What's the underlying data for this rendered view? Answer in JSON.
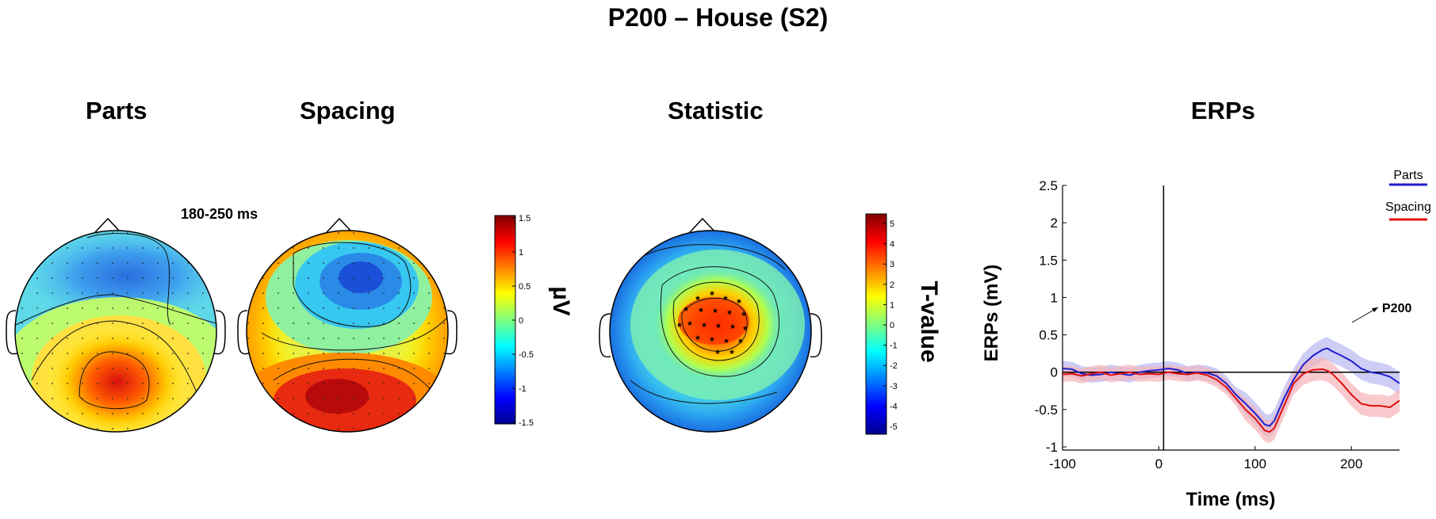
{
  "figure": {
    "title": "P200 – House (S2)",
    "time_window": "180-250 ms"
  },
  "panels": {
    "parts_title": "Parts",
    "spacing_title": "Spacing",
    "statistic_title": "Statistic",
    "erps_title": "ERPs"
  },
  "colorbars": {
    "uv": {
      "label": "µV",
      "ticks": [
        "1.5",
        "1",
        "0.5",
        "0",
        "-0.5",
        "-1",
        "-1.5"
      ]
    },
    "tvalue": {
      "label": "T-value",
      "ticks": [
        "5",
        "4",
        "3",
        "2",
        "1",
        "0",
        "-1",
        "-2",
        "-3",
        "-4",
        "-5"
      ]
    }
  },
  "colors": {
    "parts": "#1f1fcc",
    "spacing": "#e01010",
    "parts_band": "#b8b8f2",
    "spacing_band": "#f6b3b8"
  },
  "chart_data": {
    "type": "line",
    "title": "ERPs",
    "xlabel": "Time (ms)",
    "ylabel": "ERPs (mV)",
    "xlim": [
      -100,
      250
    ],
    "ylim": [
      -1,
      2.5
    ],
    "xticks": [
      -100,
      0,
      100,
      200
    ],
    "yticks": [
      2.5,
      2,
      1.5,
      1,
      0.5,
      0,
      -0.5,
      -1
    ],
    "grid": false,
    "legend_position": "top-right",
    "annotation": "P200",
    "x": [
      -100,
      -90,
      -80,
      -70,
      -60,
      -50,
      -40,
      -30,
      -20,
      -10,
      0,
      10,
      20,
      30,
      40,
      50,
      60,
      70,
      80,
      90,
      100,
      110,
      115,
      120,
      130,
      140,
      150,
      160,
      170,
      175,
      180,
      190,
      200,
      210,
      220,
      230,
      240,
      250
    ],
    "series": [
      {
        "name": "Parts",
        "values": [
          0.05,
          0.04,
          -0.02,
          -0.04,
          -0.03,
          0.0,
          -0.02,
          -0.04,
          0.0,
          0.02,
          0.03,
          0.05,
          0.03,
          -0.02,
          0.0,
          -0.01,
          -0.05,
          -0.15,
          -0.3,
          -0.42,
          -0.55,
          -0.7,
          -0.72,
          -0.65,
          -0.35,
          -0.1,
          0.1,
          0.22,
          0.3,
          0.32,
          0.28,
          0.22,
          0.15,
          0.05,
          0.0,
          -0.02,
          -0.06,
          -0.15
        ]
      },
      {
        "name": "Spacing",
        "values": [
          -0.03,
          -0.02,
          -0.05,
          -0.02,
          0.0,
          -0.04,
          -0.02,
          0.0,
          -0.03,
          -0.02,
          -0.03,
          0.0,
          -0.02,
          -0.03,
          -0.01,
          -0.04,
          -0.1,
          -0.2,
          -0.35,
          -0.5,
          -0.62,
          -0.78,
          -0.8,
          -0.75,
          -0.45,
          -0.15,
          -0.02,
          0.03,
          0.04,
          0.02,
          -0.02,
          -0.15,
          -0.3,
          -0.42,
          -0.45,
          -0.45,
          -0.47,
          -0.38
        ]
      }
    ]
  }
}
